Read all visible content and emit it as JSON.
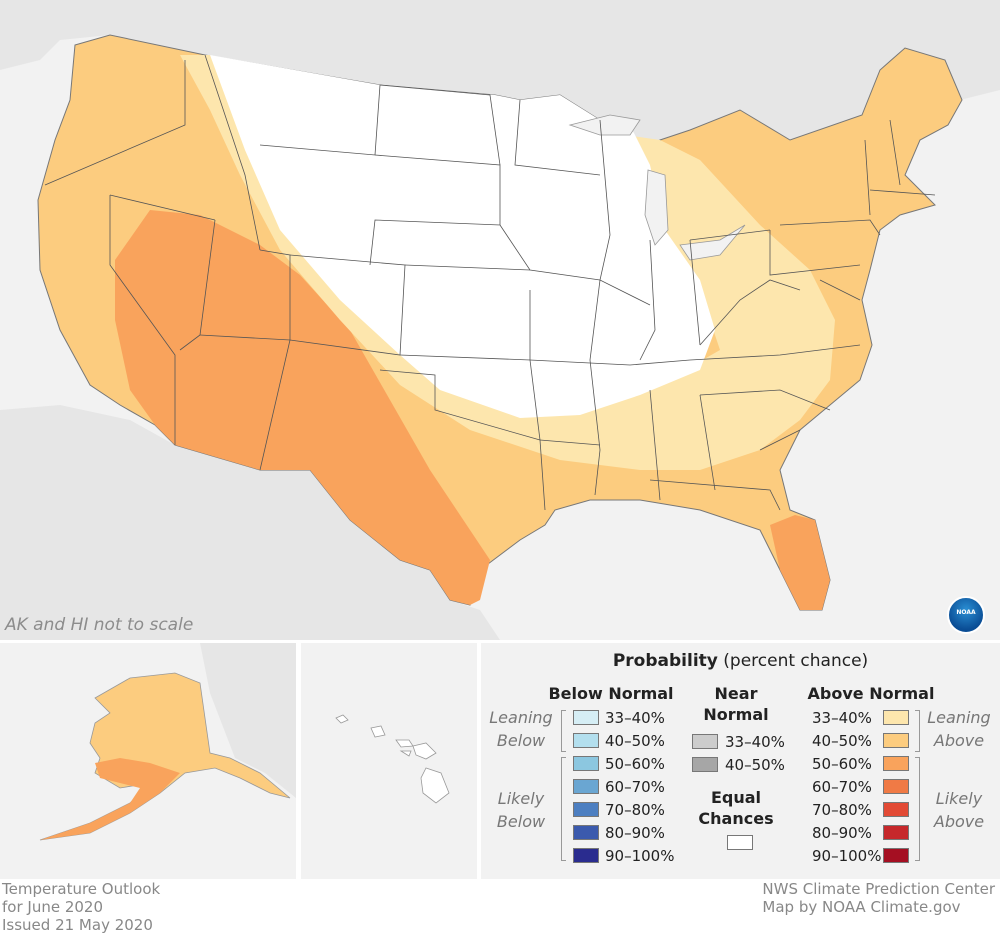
{
  "map": {
    "scale_note": "AK and HI not to scale",
    "logo_text": "NOAA",
    "colors": {
      "equal_chances": "#ffffff",
      "above_33_40": "#fde6ad",
      "above_40_50": "#fccc7f",
      "above_50_60": "#f9a35c",
      "background_land": "#e6e6e6",
      "background_water": "#f2f2f2",
      "state_lines": "#555555"
    }
  },
  "legend": {
    "title_bold": "Probability",
    "title_rest": "(percent chance)",
    "below": {
      "heading": "Below Normal",
      "leaning_label": [
        "Leaning",
        "Below"
      ],
      "likely_label": [
        "Likely",
        "Below"
      ],
      "items": [
        {
          "label": "33–40%",
          "color": "#d6eef5"
        },
        {
          "label": "40–50%",
          "color": "#b3dfee"
        },
        {
          "label": "50–60%",
          "color": "#8cc7e0"
        },
        {
          "label": "60–70%",
          "color": "#6aa6d2"
        },
        {
          "label": "70–80%",
          "color": "#4d7fc1"
        },
        {
          "label": "80–90%",
          "color": "#3b5aad"
        },
        {
          "label": "90–100%",
          "color": "#2a2c8f"
        }
      ]
    },
    "near": {
      "heading": [
        "Near",
        "Normal"
      ],
      "items": [
        {
          "label": "33–40%",
          "color": "#cccccc"
        },
        {
          "label": "40–50%",
          "color": "#a6a6a6"
        }
      ],
      "equal_heading": [
        "Equal",
        "Chances"
      ],
      "equal_color": "#ffffff"
    },
    "above": {
      "heading": "Above Normal",
      "leaning_label": [
        "Leaning",
        "Above"
      ],
      "likely_label": [
        "Likely",
        "Above"
      ],
      "items": [
        {
          "label": "33–40%",
          "color": "#fde6ad"
        },
        {
          "label": "40–50%",
          "color": "#fccc7f"
        },
        {
          "label": "50–60%",
          "color": "#f9a35c"
        },
        {
          "label": "60–70%",
          "color": "#f07a45"
        },
        {
          "label": "70–80%",
          "color": "#e24a35"
        },
        {
          "label": "80–90%",
          "color": "#c6282b"
        },
        {
          "label": "90–100%",
          "color": "#a50f22"
        }
      ]
    }
  },
  "footer": {
    "left": [
      "Temperature Outlook",
      "for June 2020",
      "Issued 21 May 2020"
    ],
    "right": [
      "NWS Climate Prediction Center",
      "Map by NOAA Climate.gov"
    ]
  }
}
